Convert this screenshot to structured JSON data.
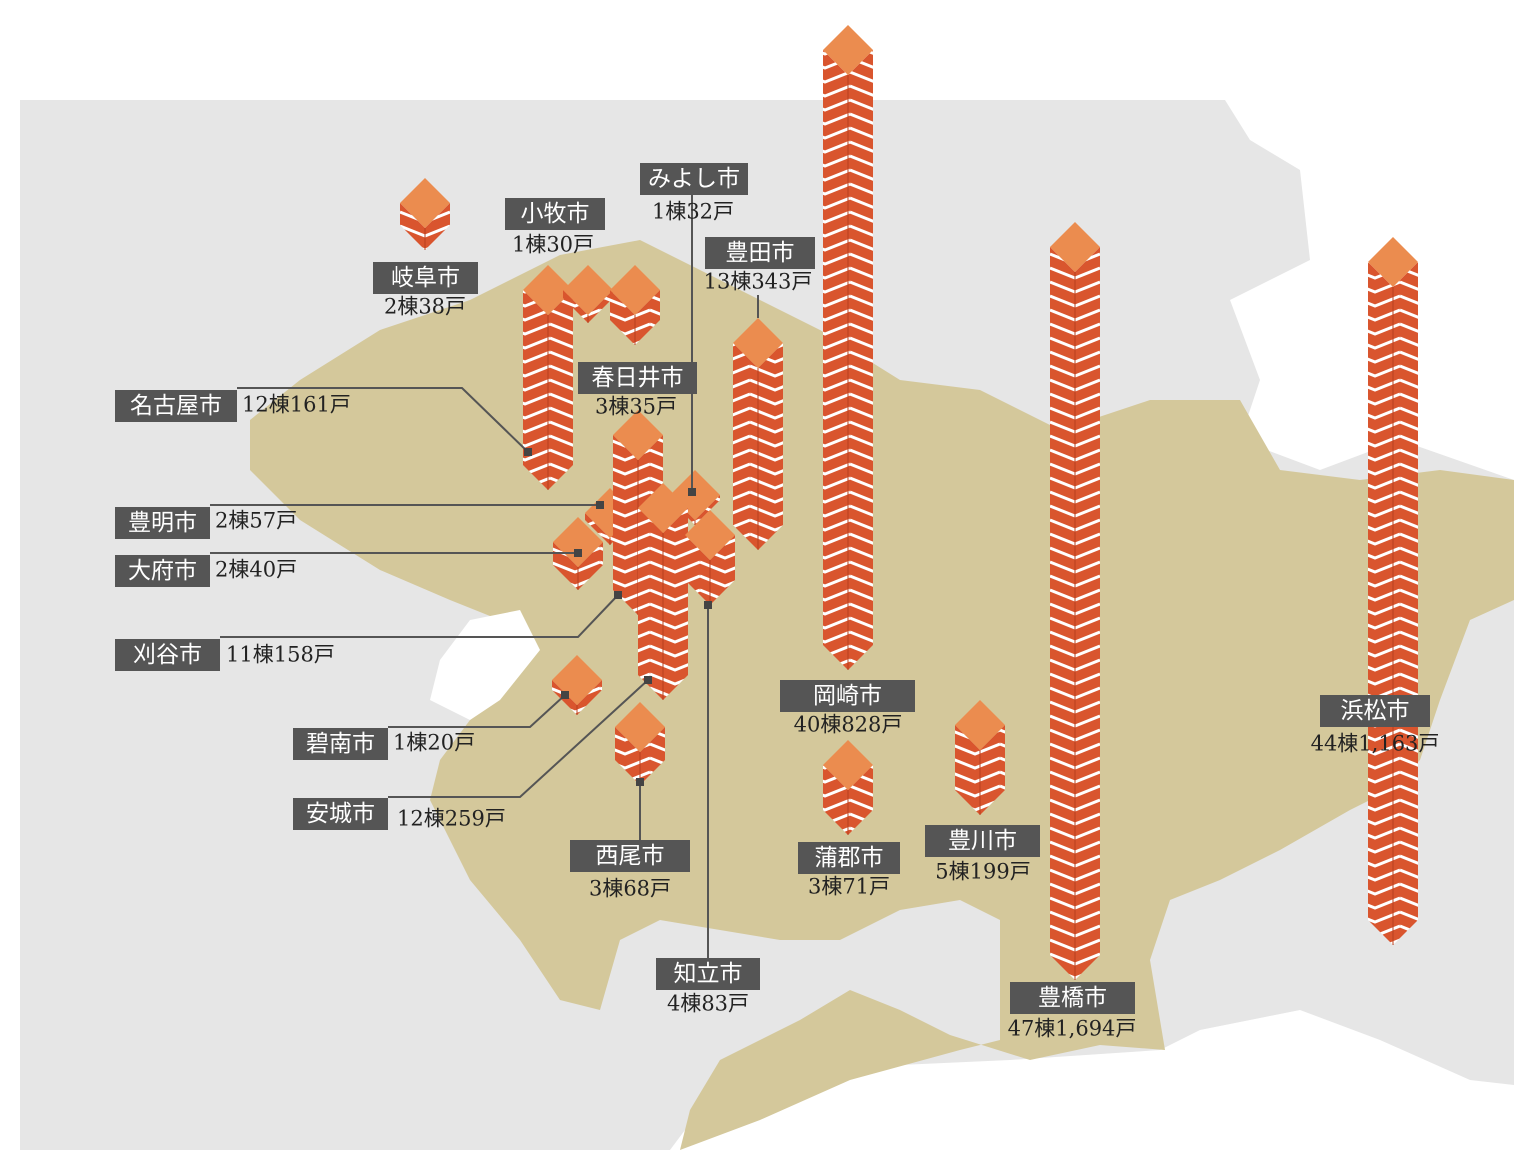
{
  "cities": [
    {
      "name": "岐阜市",
      "count": "2棟38戸"
    },
    {
      "name": "小牧市",
      "count": "1棟30戸"
    },
    {
      "name": "みよし市",
      "count": "1棟32戸"
    },
    {
      "name": "豊田市",
      "count": "13棟343戸"
    },
    {
      "name": "春日井市",
      "count": "3棟35戸"
    },
    {
      "name": "名古屋市",
      "count": "12棟161戸"
    },
    {
      "name": "豊明市",
      "count": "2棟57戸"
    },
    {
      "name": "大府市",
      "count": "2棟40戸"
    },
    {
      "name": "刈谷市",
      "count": "11棟158戸"
    },
    {
      "name": "碧南市",
      "count": "1棟20戸"
    },
    {
      "name": "安城市",
      "count": "12棟259戸"
    },
    {
      "name": "西尾市",
      "count": "3棟68戸"
    },
    {
      "name": "知立市",
      "count": "4棟83戸"
    },
    {
      "name": "岡崎市",
      "count": "40棟828戸"
    },
    {
      "name": "蒲郡市",
      "count": "3棟71戸"
    },
    {
      "name": "豊川市",
      "count": "5棟199戸"
    },
    {
      "name": "豊橋市",
      "count": "47棟1,694戸"
    },
    {
      "name": "浜松市",
      "count": "44棟1,163戸"
    }
  ]
}
